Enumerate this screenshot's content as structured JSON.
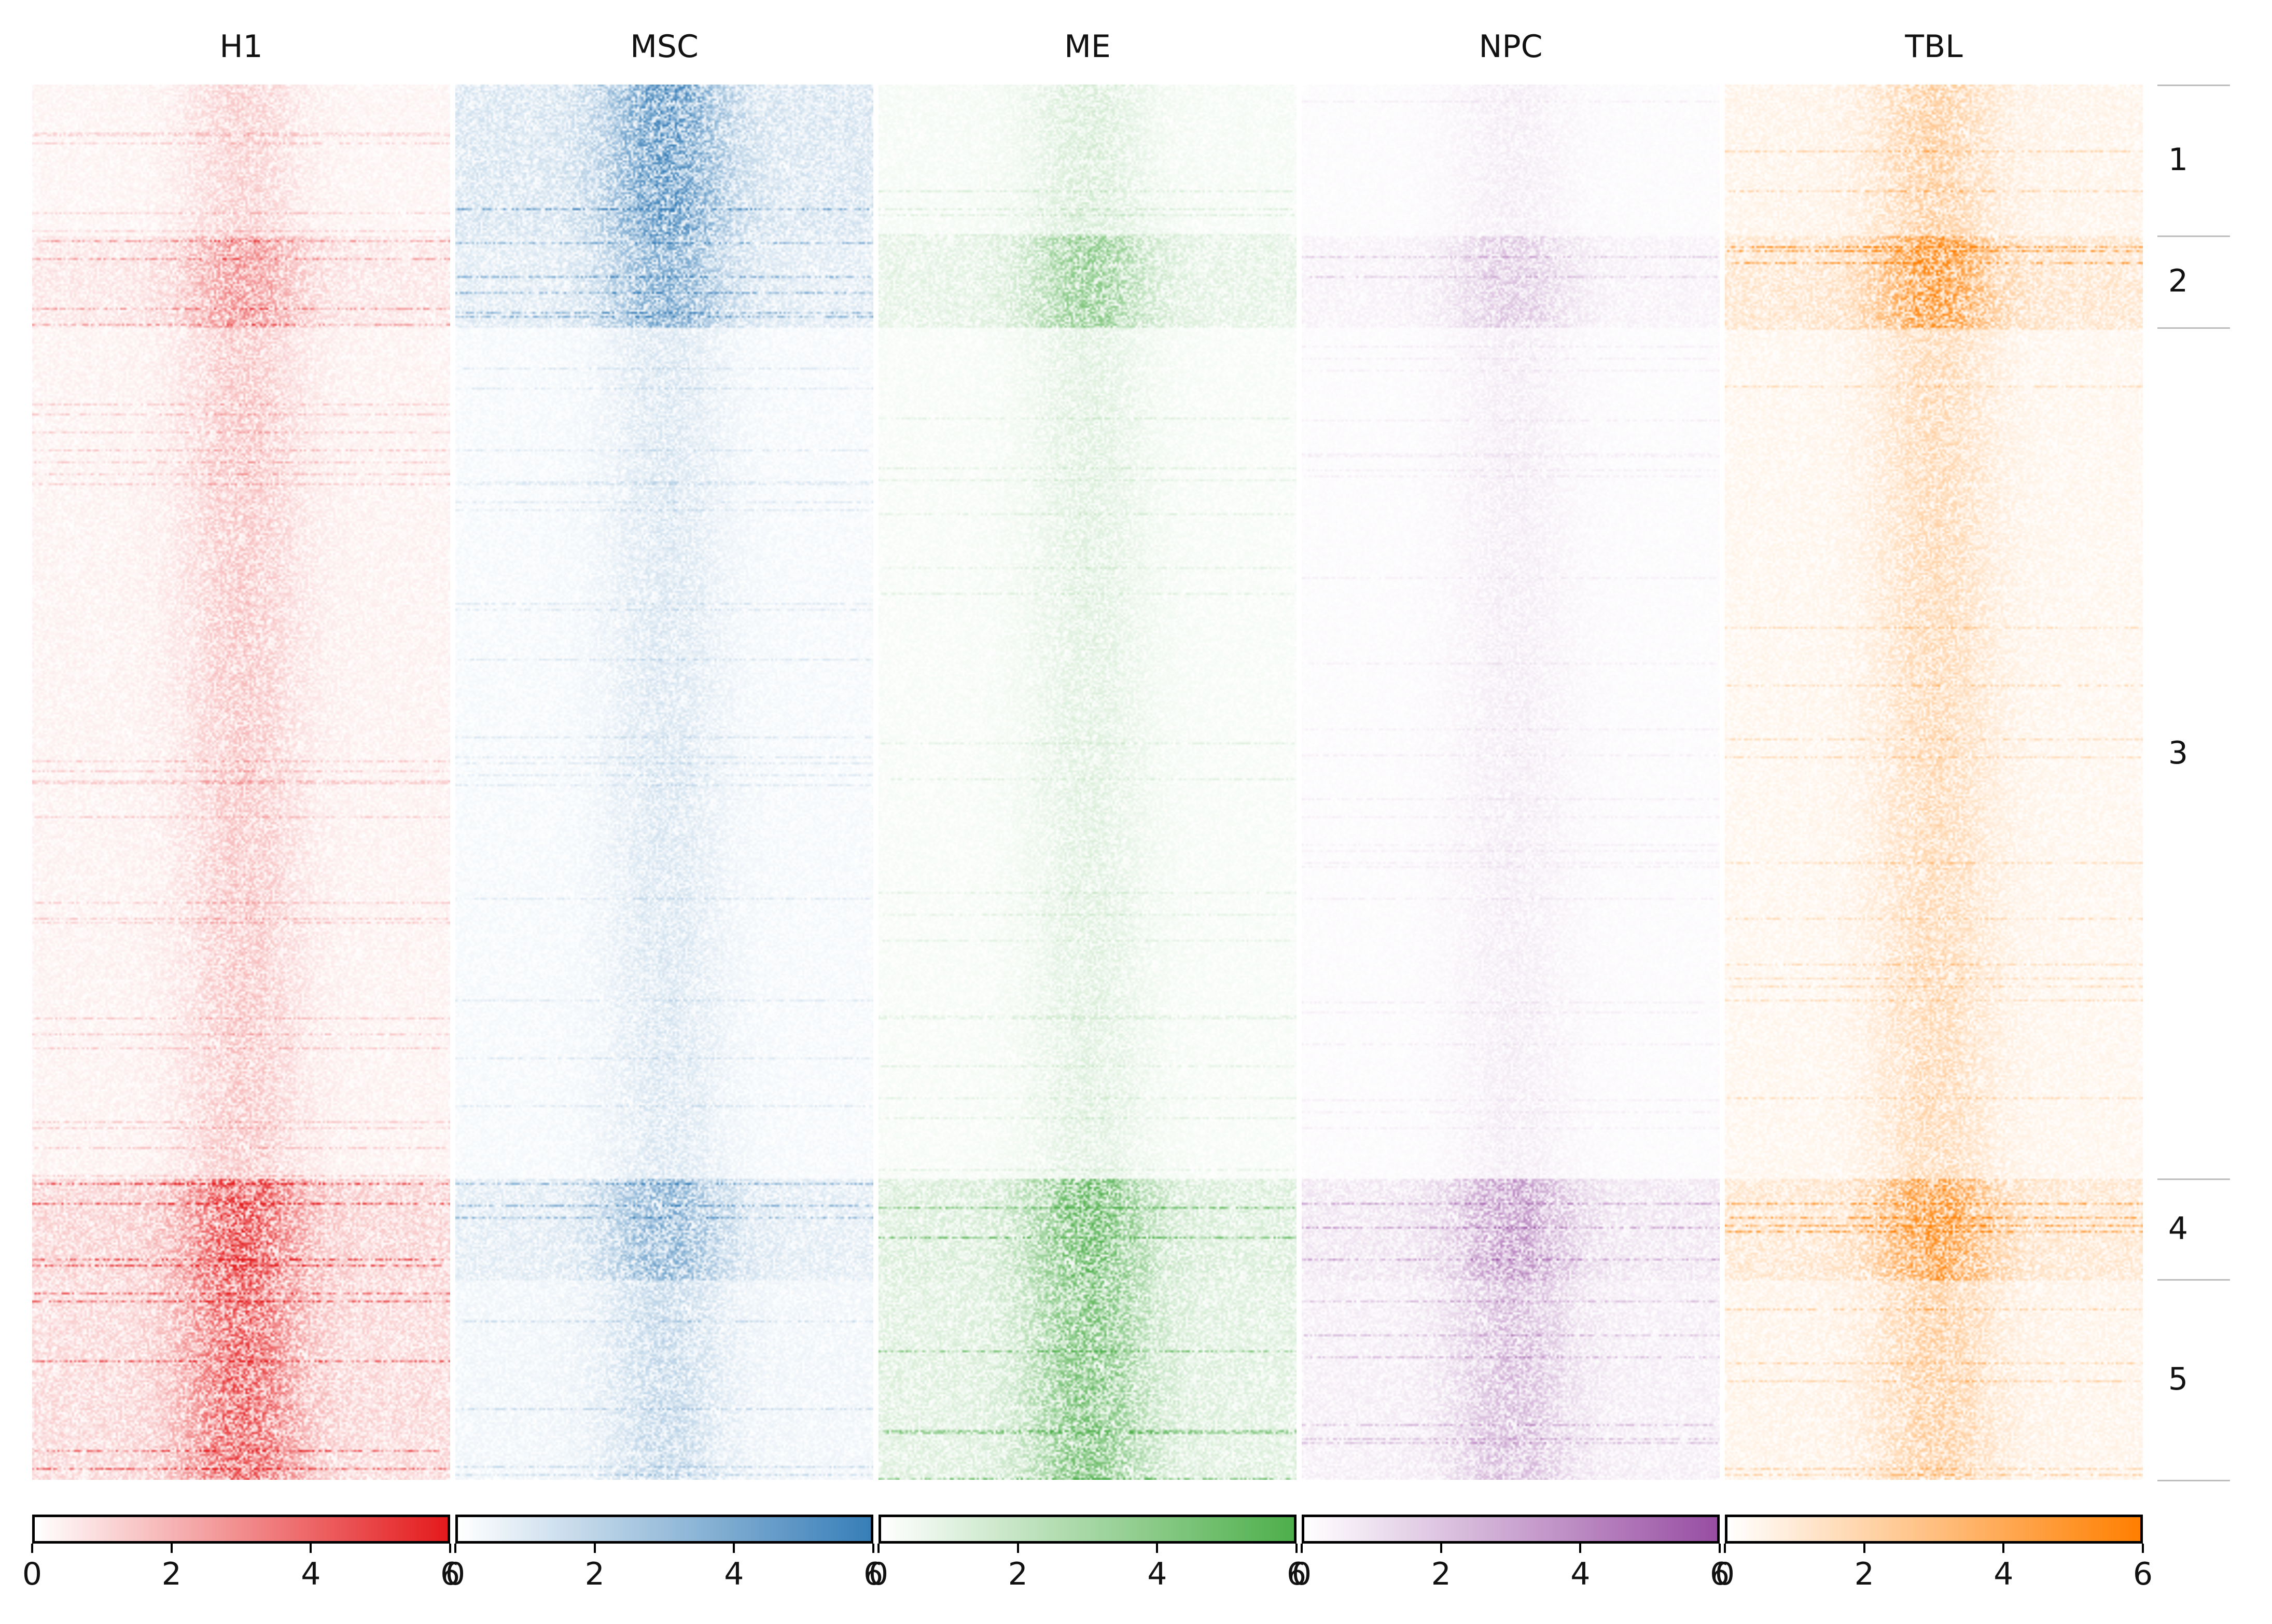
{
  "chart_data": {
    "type": "heatmap",
    "panels": [
      {
        "name": "H1",
        "color": "#e41a1c",
        "weights": [
          0.25,
          0.55,
          0.3,
          0.95,
          0.85
        ]
      },
      {
        "name": "MSC",
        "color": "#377eb8",
        "weights": [
          0.95,
          0.75,
          0.22,
          0.7,
          0.35
        ]
      },
      {
        "name": "ME",
        "color": "#4daf4a",
        "weights": [
          0.25,
          0.7,
          0.2,
          0.95,
          0.85
        ]
      },
      {
        "name": "NPC",
        "color": "#984ea3",
        "weights": [
          0.12,
          0.35,
          0.12,
          0.65,
          0.45
        ]
      },
      {
        "name": "TBL",
        "color": "#ff7f00",
        "weights": [
          0.45,
          0.95,
          0.35,
          0.9,
          0.45
        ]
      }
    ],
    "clusters": [
      {
        "label": "1",
        "fraction": 0.108
      },
      {
        "label": "2",
        "fraction": 0.066
      },
      {
        "label": "3",
        "fraction": 0.61
      },
      {
        "label": "4",
        "fraction": 0.072
      },
      {
        "label": "5",
        "fraction": 0.144
      }
    ],
    "colorbar": {
      "min": 0,
      "max": 6,
      "ticks": [
        0,
        2,
        4,
        6
      ]
    },
    "legend": "bottom"
  }
}
